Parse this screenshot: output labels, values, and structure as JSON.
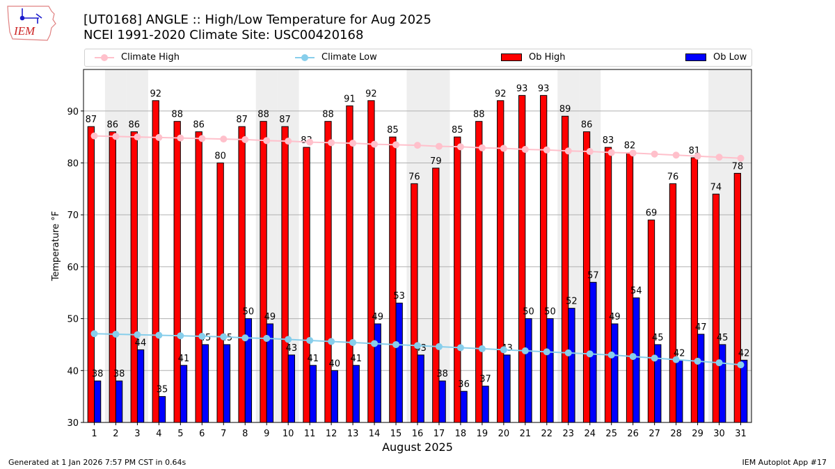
{
  "header": {
    "logo_text": "IEM",
    "title_line1": "[UT0168] ANGLE :: High/Low Temperature for Aug 2025",
    "title_line2": "NCEI 1991-2020 Climate Site: USC00420168"
  },
  "footer": {
    "generated": "Generated at 1 Jan 2026 7:57 PM CST in 0.64s",
    "app": "IEM Autoplot App #17"
  },
  "chart_data": {
    "type": "bar",
    "title": "[UT0168] ANGLE :: High/Low Temperature for Aug 2025",
    "subtitle": "NCEI 1991-2020 Climate Site: USC00420168",
    "xlabel": "August 2025",
    "ylabel": "Temperature °F",
    "ylim": [
      30,
      98
    ],
    "yticks": [
      30,
      40,
      50,
      60,
      70,
      80,
      90
    ],
    "grid": true,
    "legend_placement": "top",
    "categories": [
      "1",
      "2",
      "3",
      "4",
      "5",
      "6",
      "7",
      "8",
      "9",
      "10",
      "11",
      "12",
      "13",
      "14",
      "15",
      "16",
      "17",
      "18",
      "19",
      "20",
      "21",
      "22",
      "23",
      "24",
      "25",
      "26",
      "27",
      "28",
      "29",
      "30",
      "31"
    ],
    "weekend_days": [
      2,
      3,
      9,
      10,
      16,
      17,
      23,
      24,
      30,
      31
    ],
    "series": [
      {
        "name": "Climate High",
        "type": "line",
        "color": "#ffc0cb",
        "values": [
          85.2,
          85.1,
          85.0,
          84.9,
          84.8,
          84.7,
          84.6,
          84.5,
          84.3,
          84.2,
          84.0,
          83.9,
          83.8,
          83.6,
          83.5,
          83.4,
          83.2,
          83.1,
          82.9,
          82.8,
          82.6,
          82.5,
          82.3,
          82.2,
          82.0,
          81.9,
          81.7,
          81.5,
          81.3,
          81.1,
          80.9
        ]
      },
      {
        "name": "Climate Low",
        "type": "line",
        "color": "#87ceeb",
        "values": [
          47.1,
          47.0,
          46.9,
          46.8,
          46.7,
          46.6,
          46.5,
          46.3,
          46.2,
          46.0,
          45.8,
          45.6,
          45.4,
          45.2,
          45.0,
          44.8,
          44.6,
          44.4,
          44.2,
          44.0,
          43.8,
          43.6,
          43.4,
          43.2,
          43.0,
          42.7,
          42.4,
          42.1,
          41.8,
          41.5,
          41.1
        ]
      },
      {
        "name": "Ob High",
        "type": "bar",
        "color": "#ff0000",
        "values": [
          87,
          86,
          86,
          92,
          88,
          86,
          80,
          87,
          88,
          87,
          83,
          88,
          91,
          92,
          85,
          76,
          79,
          85,
          88,
          92,
          93,
          93,
          89,
          86,
          83,
          82,
          69,
          76,
          81,
          74,
          78
        ]
      },
      {
        "name": "Ob Low",
        "type": "bar",
        "color": "#0000ff",
        "values": [
          38,
          38,
          44,
          35,
          41,
          45,
          45,
          50,
          49,
          43,
          41,
          40,
          41,
          49,
          53,
          43,
          38,
          36,
          37,
          43,
          50,
          50,
          52,
          57,
          49,
          54,
          45,
          42,
          47,
          45,
          42
        ]
      }
    ]
  }
}
